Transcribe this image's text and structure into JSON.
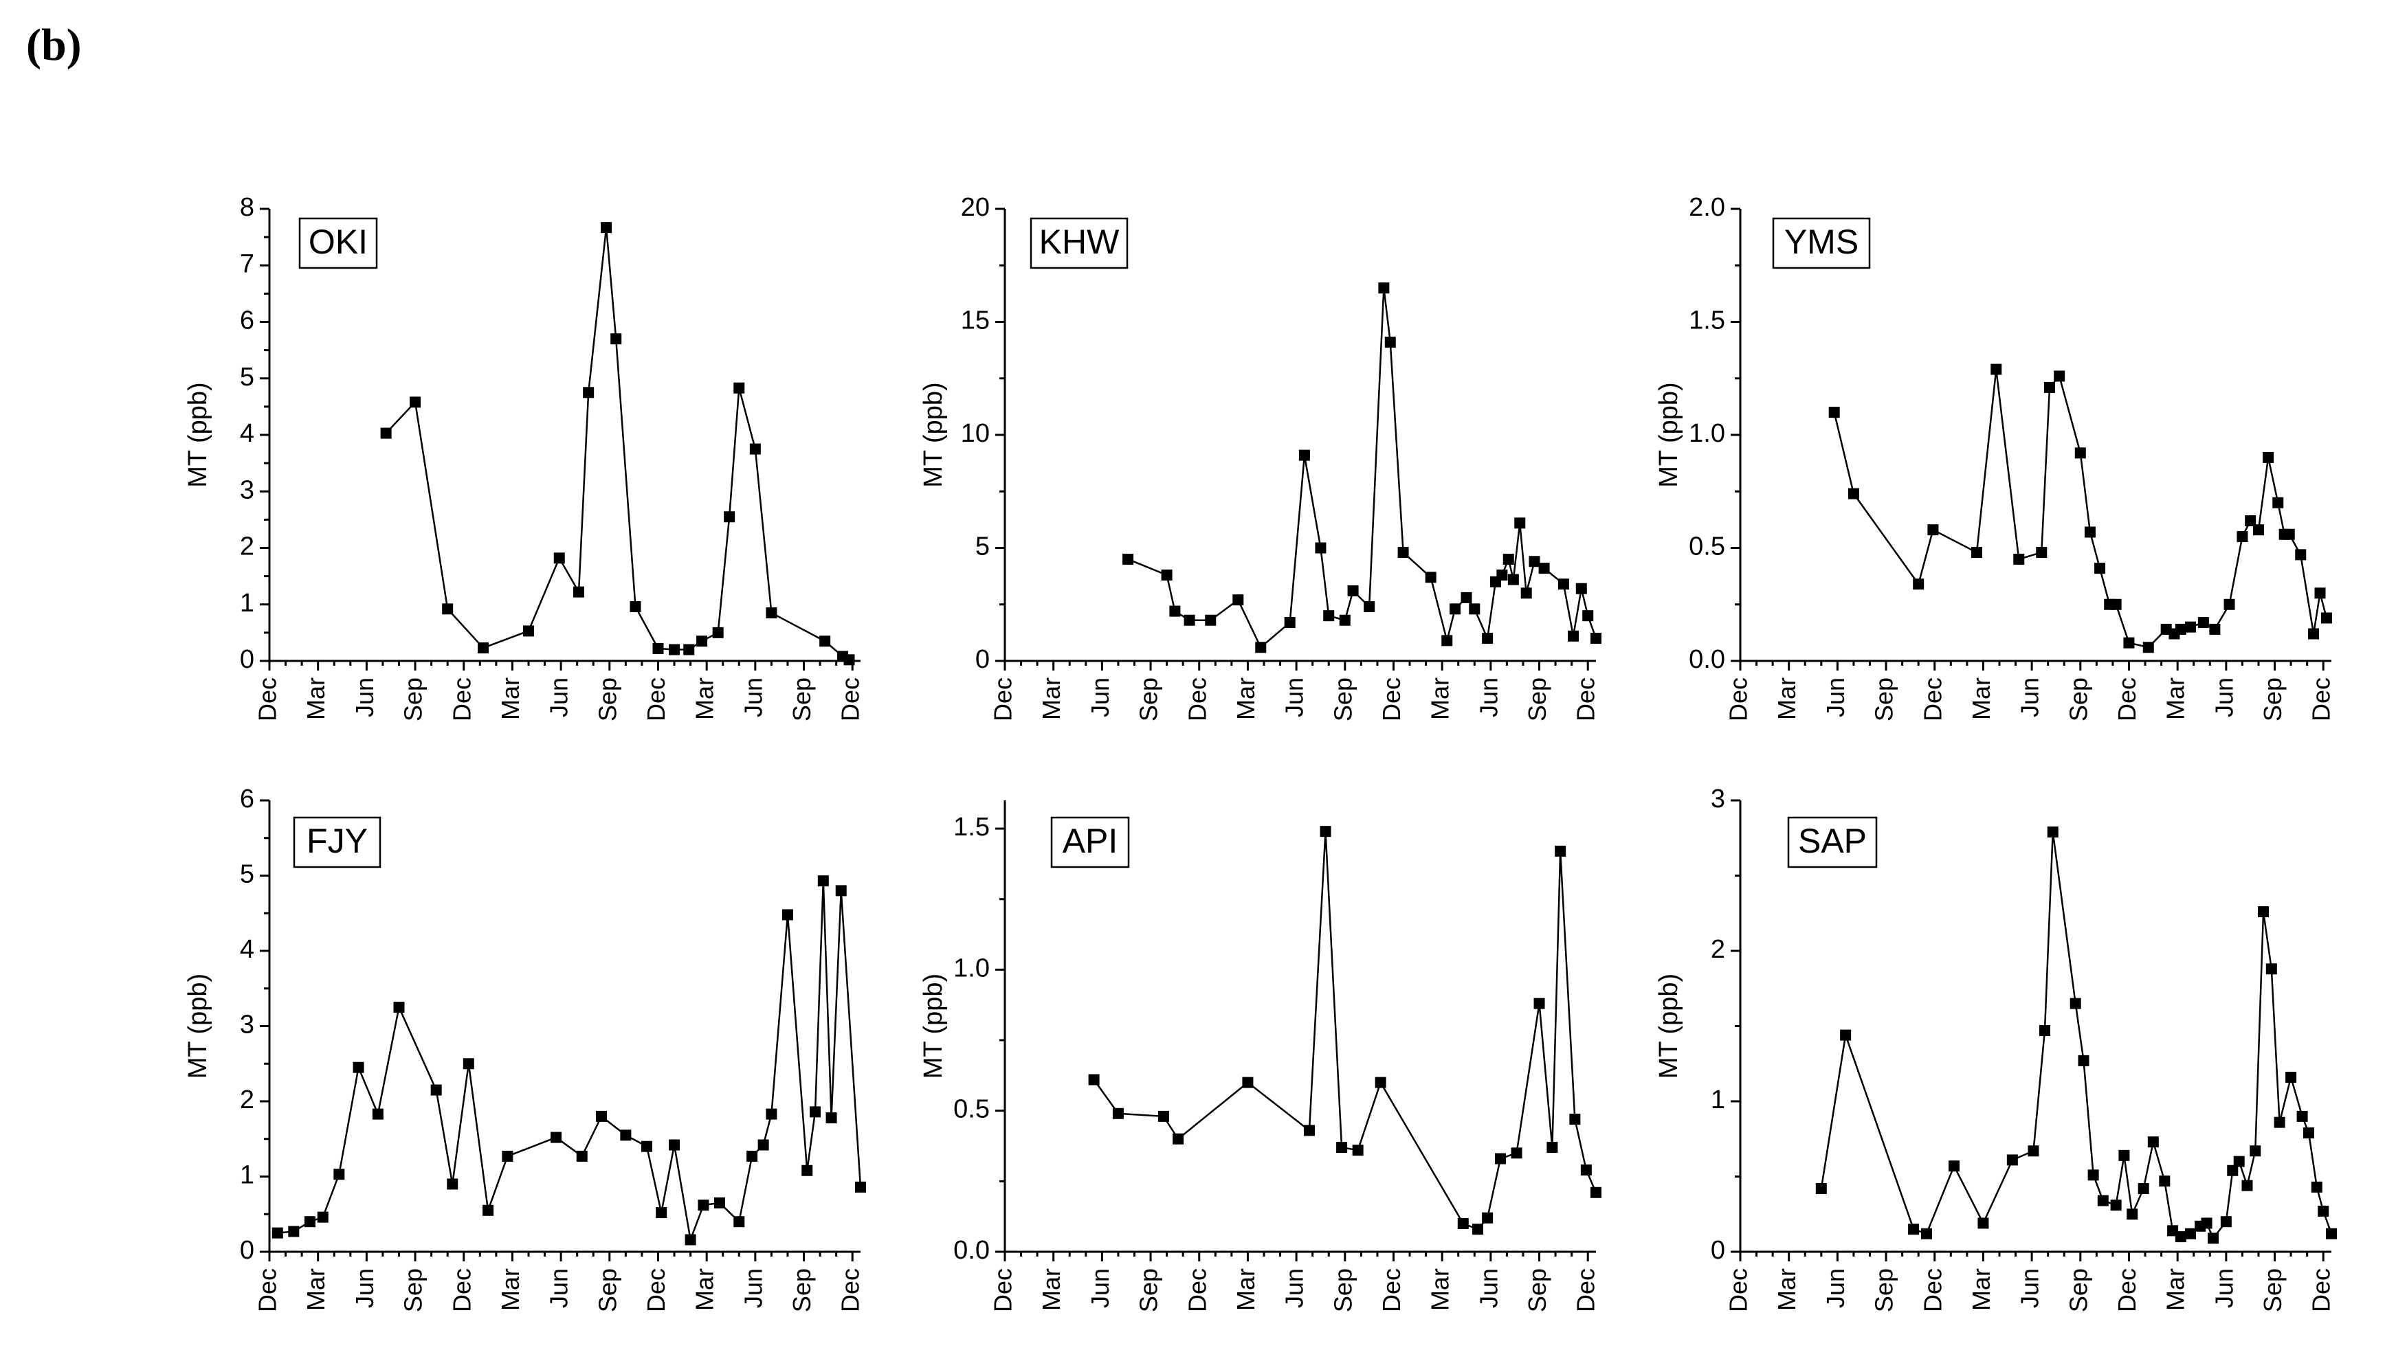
{
  "figure": {
    "panel_label": "(b)"
  },
  "chart_data": [
    {
      "type": "line",
      "site": "OKI",
      "ylabel": "MT (ppb)",
      "ylim": [
        0,
        8
      ],
      "yticks": [
        0,
        1,
        2,
        3,
        4,
        5,
        6,
        7,
        8
      ],
      "xlim": [
        0,
        36.5
      ],
      "xticks": [
        0,
        3,
        6,
        9,
        12,
        15,
        18,
        21,
        24,
        27,
        30,
        33,
        36
      ],
      "xtick_labels": [
        "Dec",
        "Mar",
        "Jun",
        "Sep",
        "Dec",
        "Mar",
        "Jun",
        "Sep",
        "Dec",
        "Mar",
        "Jun",
        "Sep",
        "Dec"
      ],
      "x": [
        7.2,
        9.0,
        11.0,
        13.2,
        16.0,
        17.9,
        19.1,
        19.7,
        20.8,
        21.4,
        22.6,
        24.0,
        25.0,
        25.9,
        26.7,
        27.7,
        28.4,
        29.0,
        30.0,
        31.0,
        34.3,
        35.4,
        35.8
      ],
      "values": [
        4.03,
        4.58,
        0.92,
        0.23,
        0.53,
        1.82,
        1.22,
        4.75,
        7.67,
        5.7,
        0.96,
        0.22,
        0.2,
        0.2,
        0.35,
        0.5,
        2.55,
        4.83,
        3.75,
        0.85,
        0.35,
        0.08,
        0.02
      ]
    },
    {
      "type": "line",
      "site": "KHW",
      "ylabel": "MT (ppb)",
      "ylim": [
        0,
        20
      ],
      "yticks": [
        0,
        5,
        10,
        15,
        20
      ],
      "xlim": [
        0,
        36.5
      ],
      "xticks": [
        0,
        3,
        6,
        9,
        12,
        15,
        18,
        21,
        24,
        27,
        30,
        33,
        36
      ],
      "xtick_labels": [
        "Dec",
        "Mar",
        "Jun",
        "Sep",
        "Dec",
        "Mar",
        "Jun",
        "Sep",
        "Dec",
        "Mar",
        "Jun",
        "Sep",
        "Dec"
      ],
      "x": [
        7.6,
        10.0,
        10.5,
        11.4,
        12.7,
        14.4,
        15.8,
        17.6,
        18.5,
        19.5,
        20.0,
        21.0,
        21.5,
        22.5,
        23.4,
        23.8,
        24.6,
        26.3,
        27.3,
        27.8,
        28.5,
        29.0,
        29.8,
        30.3,
        30.7,
        31.1,
        31.4,
        31.8,
        32.2,
        32.7,
        33.3,
        34.5,
        35.1,
        35.6,
        36.0,
        36.5
      ],
      "values": [
        4.5,
        3.8,
        2.2,
        1.8,
        1.8,
        2.7,
        0.6,
        1.7,
        9.1,
        5.0,
        2.0,
        1.8,
        3.1,
        2.4,
        16.5,
        14.1,
        4.8,
        3.7,
        0.9,
        2.3,
        2.8,
        2.3,
        1.0,
        3.5,
        3.8,
        4.5,
        3.6,
        6.1,
        3.0,
        4.4,
        4.1,
        3.4,
        1.1,
        3.2,
        2.0,
        1.0
      ]
    },
    {
      "type": "line",
      "site": "YMS",
      "ylabel": "MT (ppb)",
      "ylim": [
        0,
        2.0
      ],
      "yticks": [
        0.0,
        0.5,
        1.0,
        1.5,
        2.0
      ],
      "ytick_labels": [
        "0.0",
        "0.5",
        "1.0",
        "1.5",
        "2.0"
      ],
      "xlim": [
        0,
        36.5
      ],
      "xticks": [
        0,
        3,
        6,
        9,
        12,
        15,
        18,
        21,
        24,
        27,
        30,
        33,
        36
      ],
      "xtick_labels": [
        "Dec",
        "Mar",
        "Jun",
        "Sep",
        "Dec",
        "Mar",
        "Jun",
        "Sep",
        "Dec",
        "Mar",
        "Jun",
        "Sep",
        "Dec"
      ],
      "x": [
        5.8,
        7.0,
        11.0,
        11.9,
        14.6,
        15.8,
        17.2,
        18.6,
        19.1,
        19.7,
        21.0,
        21.6,
        22.2,
        22.8,
        23.2,
        24.0,
        25.2,
        26.3,
        26.8,
        27.2,
        27.8,
        28.6,
        29.3,
        30.2,
        31.0,
        31.5,
        32.0,
        32.6,
        33.2,
        33.6,
        33.9,
        34.6,
        35.4,
        35.8,
        36.2
      ],
      "values": [
        1.1,
        0.74,
        0.34,
        0.58,
        0.48,
        1.29,
        0.45,
        0.48,
        1.21,
        1.26,
        0.92,
        0.57,
        0.41,
        0.25,
        0.25,
        0.08,
        0.06,
        0.14,
        0.12,
        0.14,
        0.15,
        0.17,
        0.14,
        0.25,
        0.55,
        0.62,
        0.58,
        0.9,
        0.7,
        0.56,
        0.56,
        0.47,
        0.12,
        0.3,
        0.19
      ]
    },
    {
      "type": "line",
      "site": "FJY",
      "ylabel": "MT (ppb)",
      "ylim": [
        0,
        6
      ],
      "yticks": [
        0,
        1,
        2,
        3,
        4,
        5,
        6
      ],
      "xlim": [
        0,
        36.5
      ],
      "xticks": [
        0,
        3,
        6,
        9,
        12,
        15,
        18,
        21,
        24,
        27,
        30,
        33,
        36
      ],
      "xtick_labels": [
        "Dec",
        "Mar",
        "Jun",
        "Sep",
        "Dec",
        "Mar",
        "Jun",
        "Sep",
        "Dec",
        "Mar",
        "Jun",
        "Sep",
        "Dec"
      ],
      "x": [
        0.5,
        1.5,
        2.5,
        3.3,
        4.3,
        5.5,
        6.7,
        8.0,
        10.3,
        11.3,
        12.3,
        13.5,
        14.7,
        17.7,
        19.3,
        20.5,
        22.0,
        23.3,
        24.2,
        25.0,
        26.0,
        26.8,
        27.8,
        29.0,
        29.8,
        30.5,
        31.0,
        32.0,
        33.2,
        33.7,
        34.2,
        34.7,
        35.3,
        36.5
      ],
      "values": [
        0.25,
        0.27,
        0.4,
        0.46,
        1.03,
        2.45,
        1.83,
        3.25,
        2.15,
        0.9,
        2.5,
        0.55,
        1.27,
        1.52,
        1.27,
        1.8,
        1.55,
        1.4,
        0.52,
        1.42,
        0.16,
        0.62,
        0.65,
        0.4,
        1.27,
        1.42,
        1.83,
        4.48,
        1.08,
        1.86,
        4.93,
        1.78,
        4.8,
        0.86
      ]
    },
    {
      "type": "line",
      "site": "API",
      "ylabel": "MT (ppb)",
      "ylim": [
        0,
        1.6
      ],
      "yticks": [
        0.0,
        0.5,
        1.0,
        1.5
      ],
      "ytick_labels": [
        "0.0",
        "0.5",
        "1.0",
        "1.5"
      ],
      "xlim": [
        0,
        36.5
      ],
      "xticks": [
        0,
        3,
        6,
        9,
        12,
        15,
        18,
        21,
        24,
        27,
        30,
        33,
        36
      ],
      "xtick_labels": [
        "Dec",
        "Mar",
        "Jun",
        "Sep",
        "Dec",
        "Mar",
        "Jun",
        "Sep",
        "Dec",
        "Mar",
        "Jun",
        "Sep",
        "Dec"
      ],
      "x": [
        5.5,
        7.0,
        9.8,
        10.7,
        15.0,
        18.8,
        19.8,
        20.8,
        21.8,
        23.2,
        28.3,
        29.2,
        29.8,
        30.6,
        31.6,
        33.0,
        33.8,
        34.3,
        35.2,
        35.9,
        36.5
      ],
      "values": [
        0.61,
        0.49,
        0.48,
        0.4,
        0.6,
        0.43,
        1.49,
        0.37,
        0.36,
        0.6,
        0.1,
        0.08,
        0.12,
        0.33,
        0.35,
        0.88,
        0.37,
        1.42,
        0.47,
        0.29,
        0.21
      ]
    },
    {
      "type": "line",
      "site": "SAP",
      "ylabel": "MT (ppb)",
      "ylim": [
        0,
        3
      ],
      "yticks": [
        0,
        1,
        2,
        3
      ],
      "xlim": [
        0,
        36.5
      ],
      "xticks": [
        0,
        3,
        6,
        9,
        12,
        15,
        18,
        21,
        24,
        27,
        30,
        33,
        36
      ],
      "xtick_labels": [
        "Dec",
        "Mar",
        "Jun",
        "Sep",
        "Dec",
        "Mar",
        "Jun",
        "Sep",
        "Dec",
        "Mar",
        "Jun",
        "Sep",
        "Dec"
      ],
      "x": [
        5.0,
        6.5,
        10.7,
        11.5,
        13.2,
        15.0,
        16.8,
        18.1,
        18.8,
        19.3,
        20.7,
        21.2,
        21.8,
        22.4,
        23.2,
        23.7,
        24.2,
        24.9,
        25.5,
        26.2,
        26.7,
        27.2,
        27.8,
        28.4,
        28.8,
        29.2,
        30.0,
        30.4,
        30.8,
        31.3,
        31.8,
        32.3,
        32.8,
        33.3,
        34.0,
        34.7,
        35.1,
        35.6,
        36.0,
        36.5
      ],
      "values": [
        0.42,
        1.44,
        0.15,
        0.12,
        0.57,
        0.19,
        0.61,
        0.67,
        1.47,
        2.79,
        1.65,
        1.27,
        0.51,
        0.34,
        0.31,
        0.64,
        0.25,
        0.42,
        0.73,
        0.47,
        0.14,
        0.1,
        0.12,
        0.17,
        0.19,
        0.09,
        0.2,
        0.54,
        0.6,
        0.44,
        0.67,
        2.26,
        1.88,
        0.86,
        1.16,
        0.9,
        0.79,
        0.43,
        0.27,
        0.12
      ]
    }
  ]
}
